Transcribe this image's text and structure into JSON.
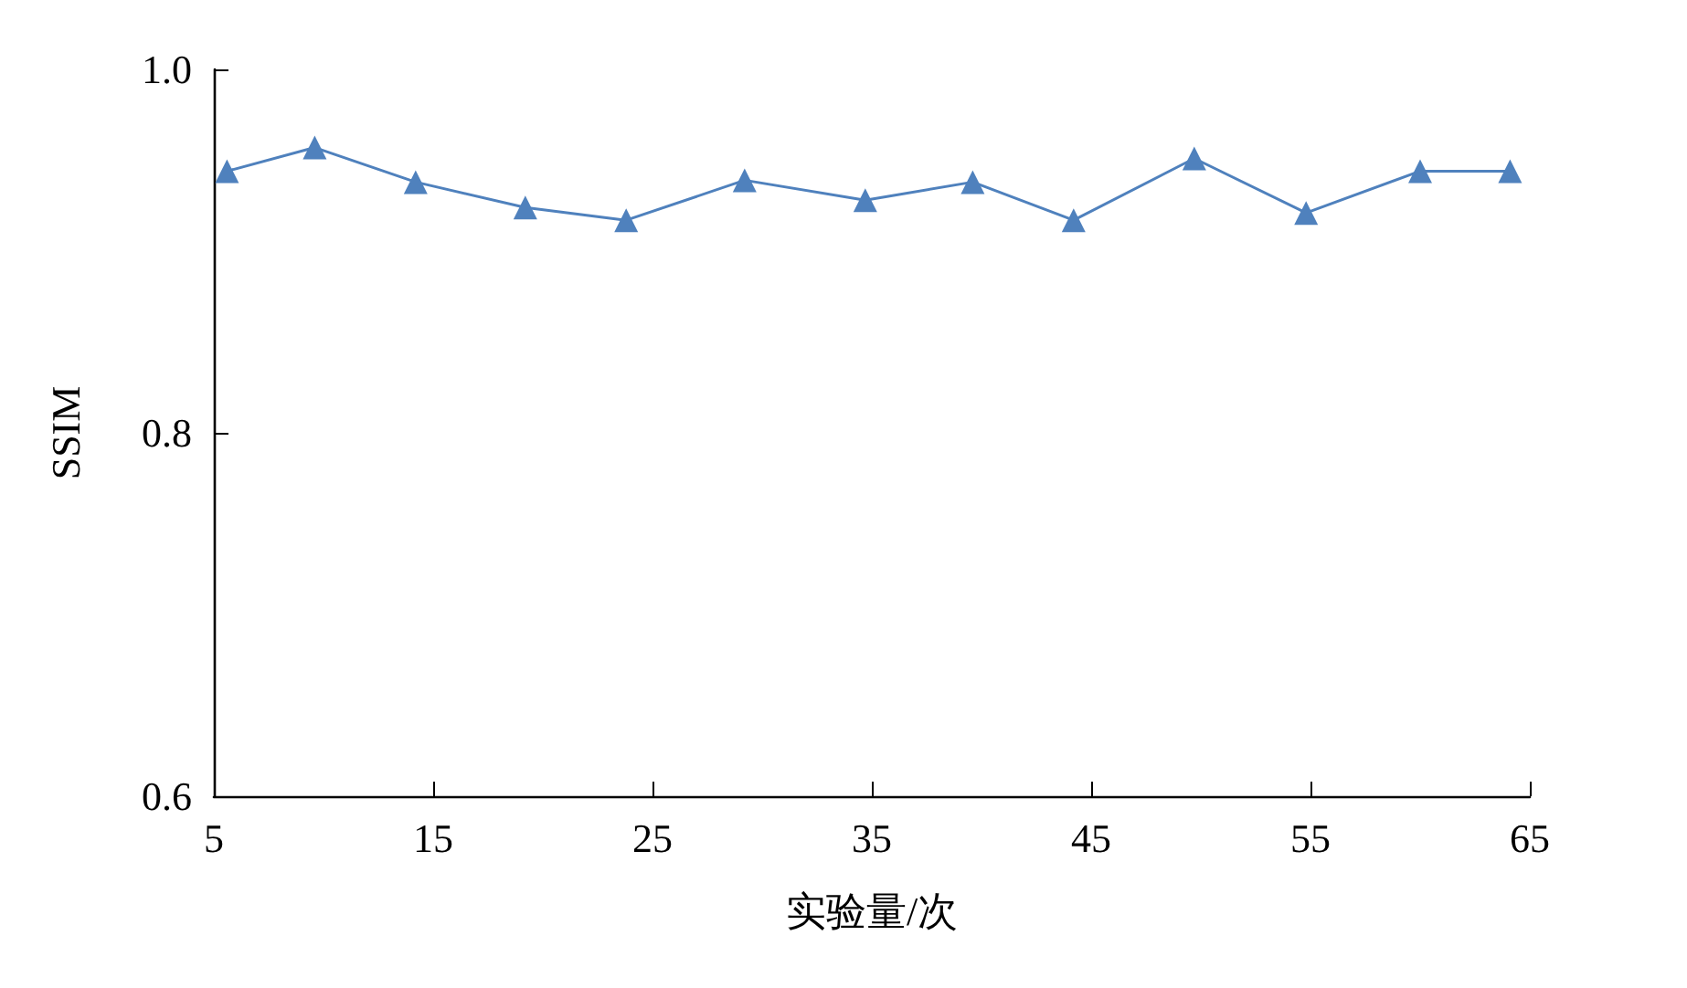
{
  "chart_data": {
    "type": "line",
    "xlabel": "实验量/次",
    "ylabel": "SSIM",
    "xlim": [
      5,
      65
    ],
    "xticks": [
      5,
      15,
      25,
      35,
      45,
      55,
      65
    ],
    "ylim": [
      0.6,
      1.0
    ],
    "yticks": [
      0.6,
      0.8,
      {
        "value": 1.0,
        "label": "1.0"
      }
    ],
    "grid": false,
    "marker": "triangle",
    "line_style": "solid",
    "series": [
      {
        "color": "#4f81bd",
        "x": [
          5.6,
          9.6,
          14.2,
          19.2,
          23.8,
          29.2,
          34.7,
          39.6,
          44.2,
          49.7,
          54.8,
          60.0,
          64.1
        ],
        "values": [
          0.944,
          0.957,
          0.938,
          0.924,
          0.917,
          0.939,
          0.928,
          0.938,
          0.917,
          0.951,
          0.921,
          0.944,
          0.944
        ]
      }
    ]
  }
}
